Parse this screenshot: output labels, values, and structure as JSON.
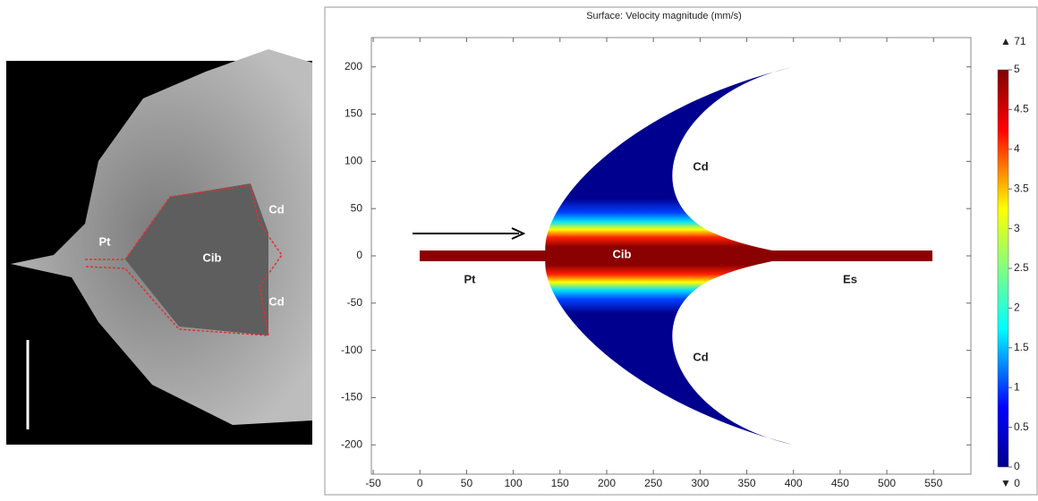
{
  "left_image": {
    "labels": [
      "Pt",
      "Cib",
      "Cd",
      "Cd"
    ]
  },
  "chart_data": {
    "type": "surface",
    "title": "Surface: Velocity magnitude (mm/s)",
    "xlim": [
      -52,
      590
    ],
    "xticks": [
      -50,
      0,
      50,
      100,
      150,
      200,
      250,
      300,
      350,
      400,
      450,
      500,
      550
    ],
    "ylim": [
      -231,
      231
    ],
    "yticks": [
      -200,
      -150,
      -100,
      -50,
      0,
      50,
      100,
      150,
      200
    ],
    "annotations": [
      "Cd",
      "Cd",
      "Cib",
      "Pt",
      "Es"
    ],
    "colorbar": {
      "range": [
        0,
        5
      ],
      "ticks": [
        0,
        0.5,
        1,
        1.5,
        2,
        2.5,
        3,
        3.5,
        4,
        4.5,
        5
      ],
      "max_label": "▲ 71",
      "min_label": "▼ 0"
    }
  }
}
